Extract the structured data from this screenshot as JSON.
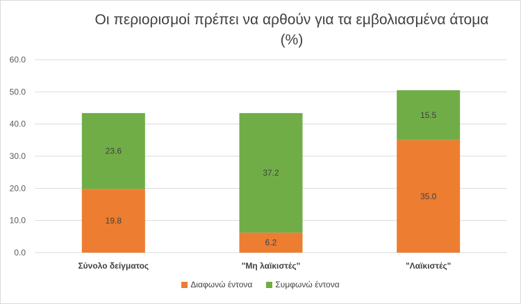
{
  "chart_data": {
    "type": "bar",
    "stacked": true,
    "title": "Οι περιορισμοί πρέπει να αρθούν για τα εμβολιασμένα άτομα (%)",
    "categories": [
      "Σύνολο δείγματος",
      "\"Μη λαϊκιστές\"",
      "\"Λαϊκιστές\""
    ],
    "series": [
      {
        "name": "Διαφωνώ έντονα",
        "color": "#ed7d31",
        "values": [
          19.8,
          6.2,
          35.0
        ]
      },
      {
        "name": "Συμφωνώ έντονα",
        "color": "#70ad47",
        "values": [
          23.6,
          37.2,
          15.5
        ]
      }
    ],
    "ylim": [
      0,
      60
    ],
    "yticks": [
      0,
      10,
      20,
      30,
      40,
      50,
      60
    ],
    "grid": true,
    "legend": "bottom"
  }
}
